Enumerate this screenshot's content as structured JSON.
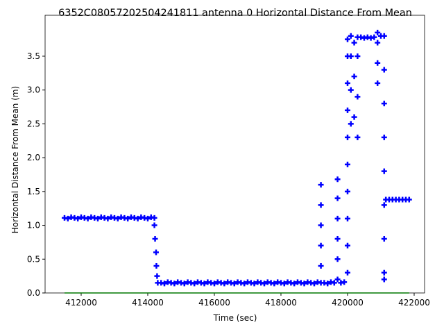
{
  "chart_data": {
    "type": "scatter",
    "title": "6352C08057202504241811 antenna 0 Horizontal Distance From Mean",
    "x_label": "Time (sec)",
    "y_label": "Horizontal Distance From Mean (m)",
    "xlim": [
      410917,
      422313
    ],
    "ylim": [
      0,
      4.105
    ],
    "xticks": [
      412000,
      414000,
      416000,
      418000,
      420000,
      422000
    ],
    "yticks": [
      {
        "value": 0,
        "label": "0.0"
      },
      {
        "value": 0.5,
        "label": "0.5"
      },
      {
        "value": 1,
        "label": "1.0"
      },
      {
        "value": 1.5,
        "label": "1.5"
      },
      {
        "value": 2,
        "label": "2.0"
      },
      {
        "value": 2.5,
        "label": "2.5"
      },
      {
        "value": 3,
        "label": "3.0"
      },
      {
        "value": 3.5,
        "label": "3.5"
      }
    ],
    "series": [
      {
        "color": "#0000ff",
        "style": "plus",
        "x": [
          411500,
          411600,
          411700,
          411800,
          411900,
          412000,
          412100,
          412200,
          412300,
          412400,
          412500,
          412600,
          412700,
          412800,
          412900,
          413000,
          413100,
          413200,
          413300,
          413400,
          413500,
          413600,
          413700,
          413800,
          413900,
          414000,
          414100,
          414200,
          414200,
          414220,
          414250,
          414260,
          414280,
          414300,
          414400,
          414500,
          414600,
          414700,
          414800,
          414900,
          415000,
          415100,
          415200,
          415300,
          415400,
          415500,
          415600,
          415700,
          415800,
          415900,
          416000,
          416100,
          416200,
          416300,
          416400,
          416500,
          416600,
          416700,
          416800,
          416900,
          417000,
          417100,
          417200,
          417300,
          417400,
          417500,
          417600,
          417700,
          417800,
          417900,
          418000,
          418100,
          418200,
          418300,
          418400,
          418500,
          418600,
          418700,
          418800,
          418900,
          419000,
          419100,
          419200,
          419200,
          419200,
          419200,
          419200,
          419200,
          419300,
          419400,
          419500,
          419600,
          419700,
          419700,
          419700,
          419700,
          419700,
          419700,
          419800,
          419900,
          420000,
          420000,
          420000,
          420000,
          420000,
          420000,
          420000,
          420000,
          420000,
          420000,
          420100,
          420100,
          420100,
          420100,
          420200,
          420200,
          420200,
          420300,
          420300,
          420300,
          420300,
          420400,
          420500,
          420600,
          420700,
          420800,
          420900,
          420900,
          420900,
          420900,
          421000,
          421100,
          421100,
          421100,
          421100,
          421100,
          421100,
          421100,
          421100,
          421100,
          421150,
          421250,
          421350,
          421450,
          421550,
          421650,
          421750,
          421850
        ],
        "y": [
          1.11,
          1.1,
          1.12,
          1.11,
          1.1,
          1.12,
          1.11,
          1.1,
          1.12,
          1.11,
          1.1,
          1.12,
          1.11,
          1.1,
          1.12,
          1.11,
          1.1,
          1.12,
          1.11,
          1.1,
          1.12,
          1.11,
          1.1,
          1.12,
          1.11,
          1.1,
          1.12,
          1.11,
          1.0,
          0.8,
          0.6,
          0.4,
          0.25,
          0.15,
          0.15,
          0.14,
          0.16,
          0.15,
          0.14,
          0.16,
          0.15,
          0.14,
          0.16,
          0.15,
          0.14,
          0.16,
          0.15,
          0.14,
          0.16,
          0.15,
          0.14,
          0.16,
          0.15,
          0.14,
          0.16,
          0.15,
          0.14,
          0.16,
          0.15,
          0.14,
          0.16,
          0.15,
          0.14,
          0.16,
          0.15,
          0.14,
          0.16,
          0.15,
          0.14,
          0.16,
          0.15,
          0.14,
          0.16,
          0.15,
          0.14,
          0.16,
          0.15,
          0.14,
          0.16,
          0.15,
          0.14,
          0.16,
          0.15,
          0.4,
          0.7,
          1.0,
          1.3,
          1.6,
          0.15,
          0.14,
          0.16,
          0.15,
          0.2,
          0.5,
          0.8,
          1.1,
          1.4,
          1.68,
          0.15,
          0.16,
          0.3,
          0.7,
          1.1,
          1.5,
          1.9,
          2.3,
          2.7,
          3.1,
          3.5,
          3.75,
          2.5,
          3.0,
          3.5,
          3.8,
          2.6,
          3.2,
          3.7,
          2.3,
          2.9,
          3.5,
          3.78,
          3.78,
          3.77,
          3.78,
          3.77,
          3.78,
          3.1,
          3.4,
          3.7,
          3.85,
          3.8,
          3.8,
          3.3,
          2.8,
          2.3,
          1.8,
          1.3,
          0.8,
          0.3,
          0.2,
          1.38,
          1.38,
          1.38,
          1.38,
          1.38,
          1.38,
          1.38,
          1.38
        ]
      },
      {
        "color": "#00ff00",
        "style": "line",
        "x": [
          411500,
          421850
        ],
        "y": [
          0,
          0
        ]
      }
    ]
  }
}
